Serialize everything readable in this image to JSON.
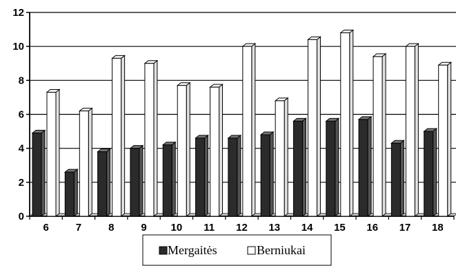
{
  "chart_data": {
    "type": "bar",
    "style": "3d-clustered-column",
    "categories": [
      "6",
      "7",
      "8",
      "9",
      "10",
      "11",
      "12",
      "13",
      "14",
      "15",
      "16",
      "17",
      "18"
    ],
    "series": [
      {
        "name": "Mergaitės",
        "values": [
          4.9,
          2.6,
          3.8,
          4.0,
          4.2,
          4.6,
          4.6,
          4.8,
          5.6,
          5.6,
          5.7,
          4.3,
          5.0
        ],
        "color": "#2b2b2b"
      },
      {
        "name": "Berniukai",
        "values": [
          7.3,
          6.2,
          9.3,
          9.0,
          7.7,
          7.6,
          10.0,
          6.8,
          10.4,
          10.8,
          9.4,
          10.0,
          8.9
        ],
        "color": "#ffffff"
      }
    ],
    "y_ticks": [
      "0",
      "2",
      "4",
      "6",
      "8",
      "10",
      "12"
    ],
    "ylim": [
      0,
      12
    ],
    "grid": true,
    "legend": "bottom-center",
    "title": "",
    "xlabel": "",
    "ylabel": ""
  }
}
